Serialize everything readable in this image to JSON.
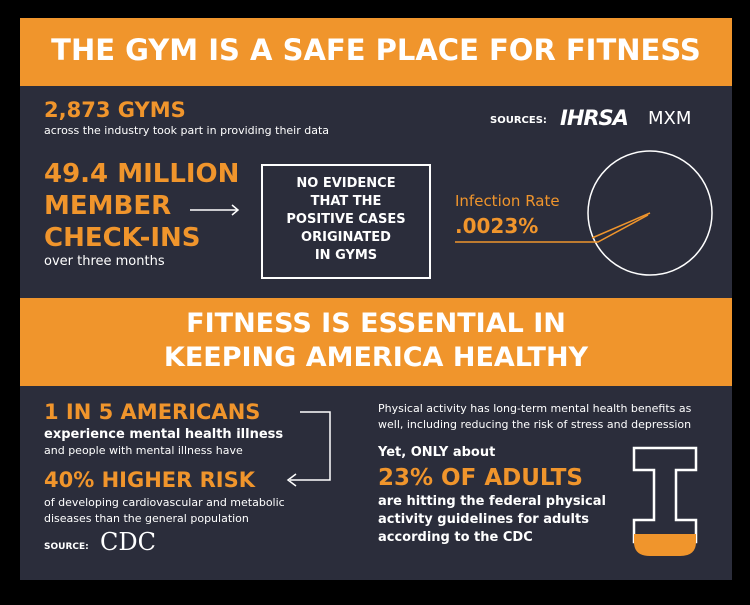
{
  "header": {
    "title": "THE GYM IS A SAFE PLACE FOR FITNESS"
  },
  "gyms": {
    "headline": "2,873 GYMS",
    "caption": "across the industry took part in providing their data"
  },
  "sources": {
    "label": "SOURCES:",
    "logos": [
      "IHRSA",
      "MXM"
    ]
  },
  "checkins": {
    "lines": [
      "49.4 MILLION",
      "MEMBER",
      "CHECK-INS"
    ],
    "caption": "over three months"
  },
  "evidence_box": {
    "lines": [
      "NO EVIDENCE",
      "THAT THE",
      "POSITIVE CASES",
      "ORIGINATED",
      "IN GYMS"
    ]
  },
  "infection": {
    "label": "Infection Rate",
    "rate": ".0023%"
  },
  "section2": {
    "title_lines": [
      "FITNESS IS ESSENTIAL IN",
      "KEEPING AMERICA HEALTHY"
    ]
  },
  "mental": {
    "headline": "1 IN 5 AMERICANS",
    "bold_line": "experience mental health illness",
    "line": "and people with mental illness have"
  },
  "risk": {
    "headline": "40% HIGHER RISK",
    "lines": [
      "of developing cardiovascular and metabolic",
      "diseases than the general population"
    ]
  },
  "source": {
    "label": "SOURCE:",
    "logo": "CDC"
  },
  "activity": {
    "paragraph": [
      "Physical activity has long-term mental health benefits as",
      "well, including reducing the risk of stress and depression"
    ],
    "intro": "Yet, ONLY about",
    "headline": "23% OF ADULTS",
    "lines": [
      "are hitting the federal physical",
      "activity guidelines for adults",
      "according to the CDC"
    ]
  }
}
